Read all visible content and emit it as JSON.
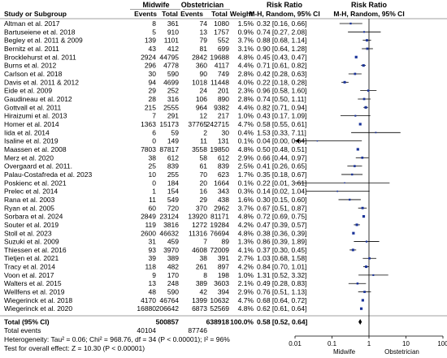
{
  "headers": {
    "group1": "Midwife",
    "group2": "Obstetrician",
    "rr_title": "Risk Ratio",
    "rr_title_plot": "Risk Ratio",
    "study": "Study or Subgroup",
    "events1": "Events",
    "total1": "Total",
    "events2": "Events",
    "total2": "Total",
    "weight": "Weight",
    "method": "M-H, Random, 95% CI",
    "method_plot": "M-H, Random, 95% CI"
  },
  "studies": [
    {
      "name": "Altman et al. 2017",
      "e1": "8",
      "t1": "361",
      "e2": "74",
      "t2": "1080",
      "w": "1.5%",
      "ci": "0.32 [0.16, 0.66]"
    },
    {
      "name": "Bartuseiene et al. 2018",
      "e1": "5",
      "t1": "910",
      "e2": "13",
      "t2": "1757",
      "w": "0.9%",
      "ci": "0.74 [0.27, 2.08]"
    },
    {
      "name": "Begley et al. 2011 & 2009",
      "e1": "139",
      "t1": "1101",
      "e2": "79",
      "t2": "552",
      "w": "3.7%",
      "ci": "0.88 [0.68, 1.14]"
    },
    {
      "name": "Bernitz et al. 2011",
      "e1": "43",
      "t1": "412",
      "e2": "81",
      "t2": "699",
      "w": "3.1%",
      "ci": "0.90 [0.64, 1.28]"
    },
    {
      "name": "Brocklehurst et al. 2011",
      "e1": "2924",
      "t1": "44795",
      "e2": "2842",
      "t2": "19688",
      "w": "4.8%",
      "ci": "0.45 [0.43, 0.47]"
    },
    {
      "name": "Burns et al. 2012",
      "e1": "296",
      "t1": "4778",
      "e2": "360",
      "t2": "4117",
      "w": "4.4%",
      "ci": "0.71 [0.61, 0.82]"
    },
    {
      "name": "Carlson et al. 2018",
      "e1": "30",
      "t1": "590",
      "e2": "90",
      "t2": "749",
      "w": "2.8%",
      "ci": "0.42 [0.28, 0.63]"
    },
    {
      "name": "Davis et al. 2011 & 2012",
      "e1": "94",
      "t1": "4699",
      "e2": "1018",
      "t2": "11448",
      "w": "4.0%",
      "ci": "0.22 [0.18, 0.28]"
    },
    {
      "name": "Eide et al. 2009",
      "e1": "29",
      "t1": "252",
      "e2": "24",
      "t2": "201",
      "w": "2.3%",
      "ci": "0.96 [0.58, 1.60]"
    },
    {
      "name": "Gaudineau et al. 2012",
      "e1": "28",
      "t1": "316",
      "e2": "106",
      "t2": "890",
      "w": "2.8%",
      "ci": "0.74 [0.50, 1.11]"
    },
    {
      "name": "Gottvall et al. 2011",
      "e1": "215",
      "t1": "2555",
      "e2": "964",
      "t2": "9382",
      "w": "4.4%",
      "ci": "0.82 [0.71, 0.94]"
    },
    {
      "name": "Hiraizumi et al. 2013",
      "e1": "7",
      "t1": "291",
      "e2": "12",
      "t2": "217",
      "w": "1.0%",
      "ci": "0.43 [0.17, 1.09]"
    },
    {
      "name": "Homer et al. 2014",
      "e1": "1363",
      "t1": "15173",
      "e2": "37765",
      "t2": "242715",
      "w": "4.7%",
      "ci": "0.58 [0.55, 0.61]"
    },
    {
      "name": "Iida et al. 2014",
      "e1": "6",
      "t1": "59",
      "e2": "2",
      "t2": "30",
      "w": "0.4%",
      "ci": "1.53 [0.33, 7.11]"
    },
    {
      "name": "Isaline et al. 2019",
      "e1": "0",
      "t1": "149",
      "e2": "11",
      "t2": "131",
      "w": "0.1%",
      "ci": "0.04 [0.00, 0.64]"
    },
    {
      "name": "Maassen et al. 2008",
      "e1": "7803",
      "t1": "87817",
      "e2": "3558",
      "t2": "19850",
      "w": "4.8%",
      "ci": "0.50 [0.48, 0.51]"
    },
    {
      "name": "Merz et al. 2020",
      "e1": "38",
      "t1": "612",
      "e2": "58",
      "t2": "612",
      "w": "2.9%",
      "ci": "0.66 [0.44, 0.97]"
    },
    {
      "name": "Overgaard et al. 2011.",
      "e1": "25",
      "t1": "839",
      "e2": "61",
      "t2": "839",
      "w": "2.5%",
      "ci": "0.41 [0.26, 0.65]"
    },
    {
      "name": "Palau-Costafreda et al. 2023",
      "e1": "10",
      "t1": "255",
      "e2": "70",
      "t2": "623",
      "w": "1.7%",
      "ci": "0.35 [0.18, 0.67]"
    },
    {
      "name": "Poskienc et al. 2021",
      "e1": "0",
      "t1": "184",
      "e2": "20",
      "t2": "1664",
      "w": "0.1%",
      "ci": "0.22 [0.01, 3.61]"
    },
    {
      "name": "Prelec et al. 2014",
      "e1": "1",
      "t1": "154",
      "e2": "16",
      "t2": "343",
      "w": "0.3%",
      "ci": "0.14 [0.02, 1.04]"
    },
    {
      "name": "Rana et al. 2003",
      "e1": "11",
      "t1": "549",
      "e2": "29",
      "t2": "438",
      "w": "1.6%",
      "ci": "0.30 [0.15, 0.60]"
    },
    {
      "name": "Ryan et al. 2005",
      "e1": "60",
      "t1": "720",
      "e2": "370",
      "t2": "2962",
      "w": "3.7%",
      "ci": "0.67 [0.51, 0.87]"
    },
    {
      "name": "Sorbara et al. 2024",
      "e1": "2849",
      "t1": "23124",
      "e2": "13920",
      "t2": "81171",
      "w": "4.8%",
      "ci": "0.72 [0.69, 0.75]"
    },
    {
      "name": "Souter et al. 2019",
      "e1": "119",
      "t1": "3816",
      "e2": "1272",
      "t2": "19284",
      "w": "4.2%",
      "ci": "0.47 [0.39, 0.57]"
    },
    {
      "name": "Stoll et al. 2023",
      "e1": "2600",
      "t1": "46632",
      "e2": "11316",
      "t2": "76694",
      "w": "4.8%",
      "ci": "0.38 [0.36, 0.39]"
    },
    {
      "name": "Suzuki et al. 2009",
      "e1": "31",
      "t1": "459",
      "e2": "7",
      "t2": "89",
      "w": "1.3%",
      "ci": "0.86 [0.39, 1.89]"
    },
    {
      "name": "Thiessen et al. 2016",
      "e1": "93",
      "t1": "3970",
      "e2": "4608",
      "t2": "72009",
      "w": "4.1%",
      "ci": "0.37 [0.30, 0.45]"
    },
    {
      "name": "Tietjen et al. 2021",
      "e1": "39",
      "t1": "389",
      "e2": "38",
      "t2": "391",
      "w": "2.7%",
      "ci": "1.03 [0.68, 1.58]"
    },
    {
      "name": "Tracy et al. 2014",
      "e1": "118",
      "t1": "482",
      "e2": "261",
      "t2": "897",
      "w": "4.2%",
      "ci": "0.84 [0.70, 1.01]"
    },
    {
      "name": "Voon et al. 2017",
      "e1": "9",
      "t1": "170",
      "e2": "8",
      "t2": "198",
      "w": "1.0%",
      "ci": "1.31 [0.52, 3.32]"
    },
    {
      "name": "Walters et al. 2015",
      "e1": "13",
      "t1": "248",
      "e2": "389",
      "t2": "3603",
      "w": "2.1%",
      "ci": "0.49 [0.28, 0.83]"
    },
    {
      "name": "Wellfens et al. 2019",
      "e1": "48",
      "t1": "590",
      "e2": "42",
      "t2": "394",
      "w": "2.9%",
      "ci": "0.76 [0.51, 1.13]"
    },
    {
      "name": "Wiegerinck et al. 2018",
      "e1": "4170",
      "t1": "46764",
      "e2": "1399",
      "t2": "10632",
      "w": "4.7%",
      "ci": "0.68 [0.64, 0.72]"
    },
    {
      "name": "Wiegerinck et al. 2020",
      "e1": "16880",
      "t1": "206642",
      "e2": "6873",
      "t2": "52569",
      "w": "4.8%",
      "ci": "0.62 [0.61, 0.64]"
    }
  ],
  "total": {
    "label": "Total (95% CI)",
    "t1": "500857",
    "t2": "638918",
    "w": "100.0%",
    "ci": "0.58 [0.52, 0.64]"
  },
  "total_events": {
    "label": "Total events",
    "e1": "40104",
    "e2": "87746"
  },
  "heterogeneity": "Heterogeneity: Tau² = 0.06; Chi² = 968.76, df = 34 (P < 0.00001); I² = 96%",
  "overall_effect": "Test for overall effect: Z = 10.30 (P < 0.00001)",
  "colors": {
    "marker": "#1a3399",
    "line": "#000000",
    "divider": "#808080"
  },
  "chart_data": {
    "type": "forest",
    "scale": "log",
    "xlim": [
      0.01,
      100
    ],
    "x_ticks": [
      0.01,
      0.1,
      1,
      10,
      100
    ],
    "x_tick_labels": [
      "0.01",
      "0.1",
      "1",
      "10",
      "100"
    ],
    "left_label": "Midwife",
    "right_label": "Obstetrician",
    "studies": [
      {
        "name": "Altman et al. 2017",
        "rr": 0.32,
        "lo": 0.16,
        "hi": 0.66,
        "weight": 1.5
      },
      {
        "name": "Bartuseiene et al. 2018",
        "rr": 0.74,
        "lo": 0.27,
        "hi": 2.08,
        "weight": 0.9
      },
      {
        "name": "Begley et al. 2011 & 2009",
        "rr": 0.88,
        "lo": 0.68,
        "hi": 1.14,
        "weight": 3.7
      },
      {
        "name": "Bernitz et al. 2011",
        "rr": 0.9,
        "lo": 0.64,
        "hi": 1.28,
        "weight": 3.1
      },
      {
        "name": "Brocklehurst et al. 2011",
        "rr": 0.45,
        "lo": 0.43,
        "hi": 0.47,
        "weight": 4.8
      },
      {
        "name": "Burns et al. 2012",
        "rr": 0.71,
        "lo": 0.61,
        "hi": 0.82,
        "weight": 4.4
      },
      {
        "name": "Carlson et al. 2018",
        "rr": 0.42,
        "lo": 0.28,
        "hi": 0.63,
        "weight": 2.8
      },
      {
        "name": "Davis et al. 2011 & 2012",
        "rr": 0.22,
        "lo": 0.18,
        "hi": 0.28,
        "weight": 4.0
      },
      {
        "name": "Eide et al. 2009",
        "rr": 0.96,
        "lo": 0.58,
        "hi": 1.6,
        "weight": 2.3
      },
      {
        "name": "Gaudineau et al. 2012",
        "rr": 0.74,
        "lo": 0.5,
        "hi": 1.11,
        "weight": 2.8
      },
      {
        "name": "Gottvall et al. 2011",
        "rr": 0.82,
        "lo": 0.71,
        "hi": 0.94,
        "weight": 4.4
      },
      {
        "name": "Hiraizumi et al. 2013",
        "rr": 0.43,
        "lo": 0.17,
        "hi": 1.09,
        "weight": 1.0
      },
      {
        "name": "Homer et al. 2014",
        "rr": 0.58,
        "lo": 0.55,
        "hi": 0.61,
        "weight": 4.7
      },
      {
        "name": "Iida et al. 2014",
        "rr": 1.53,
        "lo": 0.33,
        "hi": 7.11,
        "weight": 0.4
      },
      {
        "name": "Isaline et al. 2019",
        "rr": 0.04,
        "lo": 0.0,
        "hi": 0.64,
        "weight": 0.1
      },
      {
        "name": "Maassen et al. 2008",
        "rr": 0.5,
        "lo": 0.48,
        "hi": 0.51,
        "weight": 4.8
      },
      {
        "name": "Merz et al. 2020",
        "rr": 0.66,
        "lo": 0.44,
        "hi": 0.97,
        "weight": 2.9
      },
      {
        "name": "Overgaard et al. 2011.",
        "rr": 0.41,
        "lo": 0.26,
        "hi": 0.65,
        "weight": 2.5
      },
      {
        "name": "Palau-Costafreda et al. 2023",
        "rr": 0.35,
        "lo": 0.18,
        "hi": 0.67,
        "weight": 1.7
      },
      {
        "name": "Poskienc et al. 2021",
        "rr": 0.22,
        "lo": 0.01,
        "hi": 3.61,
        "weight": 0.1
      },
      {
        "name": "Prelec et al. 2014",
        "rr": 0.14,
        "lo": 0.02,
        "hi": 1.04,
        "weight": 0.3
      },
      {
        "name": "Rana et al. 2003",
        "rr": 0.3,
        "lo": 0.15,
        "hi": 0.6,
        "weight": 1.6
      },
      {
        "name": "Ryan et al. 2005",
        "rr": 0.67,
        "lo": 0.51,
        "hi": 0.87,
        "weight": 3.7
      },
      {
        "name": "Sorbara et al. 2024",
        "rr": 0.72,
        "lo": 0.69,
        "hi": 0.75,
        "weight": 4.8
      },
      {
        "name": "Souter et al. 2019",
        "rr": 0.47,
        "lo": 0.39,
        "hi": 0.57,
        "weight": 4.2
      },
      {
        "name": "Stoll et al. 2023",
        "rr": 0.38,
        "lo": 0.36,
        "hi": 0.39,
        "weight": 4.8
      },
      {
        "name": "Suzuki et al. 2009",
        "rr": 0.86,
        "lo": 0.39,
        "hi": 1.89,
        "weight": 1.3
      },
      {
        "name": "Thiessen et al. 2016",
        "rr": 0.37,
        "lo": 0.3,
        "hi": 0.45,
        "weight": 4.1
      },
      {
        "name": "Tietjen et al. 2021",
        "rr": 1.03,
        "lo": 0.68,
        "hi": 1.58,
        "weight": 2.7
      },
      {
        "name": "Tracy et al. 2014",
        "rr": 0.84,
        "lo": 0.7,
        "hi": 1.01,
        "weight": 4.2
      },
      {
        "name": "Voon et al. 2017",
        "rr": 1.31,
        "lo": 0.52,
        "hi": 3.32,
        "weight": 1.0
      },
      {
        "name": "Walters et al. 2015",
        "rr": 0.49,
        "lo": 0.28,
        "hi": 0.83,
        "weight": 2.1
      },
      {
        "name": "Wellfens et al. 2019",
        "rr": 0.76,
        "lo": 0.51,
        "hi": 1.13,
        "weight": 2.9
      },
      {
        "name": "Wiegerinck et al. 2018",
        "rr": 0.68,
        "lo": 0.64,
        "hi": 0.72,
        "weight": 4.7
      },
      {
        "name": "Wiegerinck et al. 2020",
        "rr": 0.62,
        "lo": 0.61,
        "hi": 0.64,
        "weight": 4.8
      }
    ],
    "pooled": {
      "rr": 0.58,
      "lo": 0.52,
      "hi": 0.64
    }
  }
}
